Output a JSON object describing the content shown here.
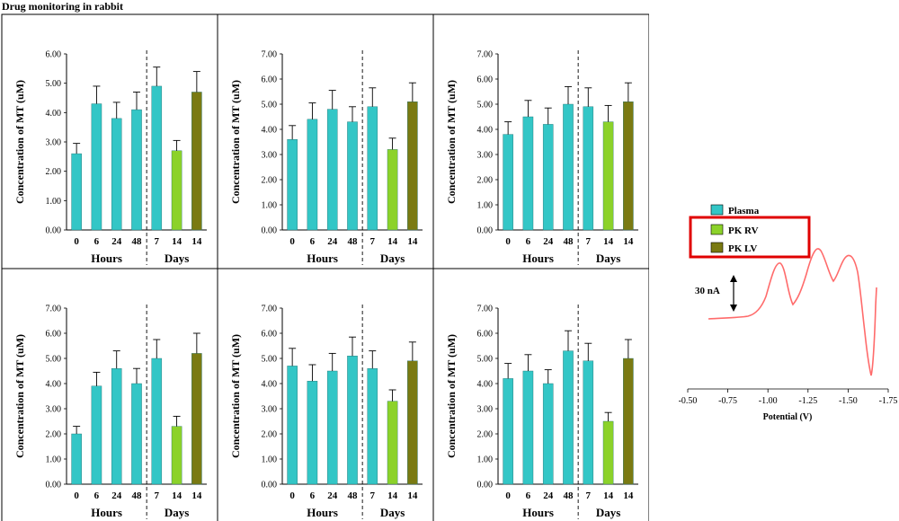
{
  "title": "Drug monitoring in rabbit",
  "colors": {
    "plasma": "#33c6c6",
    "pk_rv": "#8cd22a",
    "pk_lv": "#7a7a12",
    "highlight": "#e00000",
    "trace": "#ff6b6b",
    "axis": "#000000"
  },
  "legend": {
    "items": [
      {
        "key": "plasma",
        "label": "Plasma"
      },
      {
        "key": "pk_rv",
        "label": "PK RV"
      },
      {
        "key": "pk_lv",
        "label": "PK LV"
      }
    ]
  },
  "voltammogram": {
    "scale_label": "30 nA",
    "xlabel": "Potential (V)",
    "x_ticks": [
      "-0.50",
      "-0.75",
      "-1.00",
      "-1.25",
      "-1.50",
      "-1.75"
    ]
  },
  "chart_data": [
    {
      "type": "bar",
      "ylabel": "Concentration of MT (uM)",
      "ylim": [
        0,
        6
      ],
      "y_ticks": [
        "0.00",
        "1.00",
        "2.00",
        "3.00",
        "4.00",
        "5.00",
        "6.00"
      ],
      "categories": [
        "0",
        "6",
        "24",
        "48",
        "7",
        "14",
        "14"
      ],
      "groups": [
        "Hours",
        "Days"
      ],
      "series_keys": [
        "plasma",
        "plasma",
        "plasma",
        "plasma",
        "plasma",
        "pk_rv",
        "pk_lv"
      ],
      "values": [
        2.6,
        4.3,
        3.8,
        4.1,
        4.9,
        2.7,
        4.7
      ],
      "errors": [
        0.35,
        0.6,
        0.55,
        0.6,
        0.65,
        0.35,
        0.7
      ]
    },
    {
      "type": "bar",
      "ylabel": "Concentration of MT (uM)",
      "ylim": [
        0,
        7
      ],
      "y_ticks": [
        "0.00",
        "1.00",
        "2.00",
        "3.00",
        "4.00",
        "5.00",
        "6.00",
        "7.00"
      ],
      "categories": [
        "0",
        "6",
        "24",
        "48",
        "7",
        "14",
        "14"
      ],
      "groups": [
        "Hours",
        "Days"
      ],
      "series_keys": [
        "plasma",
        "plasma",
        "plasma",
        "plasma",
        "plasma",
        "pk_rv",
        "pk_lv"
      ],
      "values": [
        3.6,
        4.4,
        4.8,
        4.3,
        4.9,
        3.2,
        5.1
      ],
      "errors": [
        0.55,
        0.65,
        0.75,
        0.6,
        0.75,
        0.45,
        0.75
      ]
    },
    {
      "type": "bar",
      "ylabel": "Concentration of MT (uM)",
      "ylim": [
        0,
        7
      ],
      "y_ticks": [
        "0.00",
        "1.00",
        "2.00",
        "3.00",
        "4.00",
        "5.00",
        "6.00",
        "7.00"
      ],
      "categories": [
        "0",
        "6",
        "24",
        "48",
        "7",
        "14",
        "14"
      ],
      "groups": [
        "Hours",
        "Days"
      ],
      "series_keys": [
        "plasma",
        "plasma",
        "plasma",
        "plasma",
        "plasma",
        "pk_rv",
        "pk_lv"
      ],
      "values": [
        3.8,
        4.5,
        4.2,
        5.0,
        4.9,
        4.3,
        5.1
      ],
      "errors": [
        0.5,
        0.65,
        0.65,
        0.7,
        0.75,
        0.65,
        0.75
      ]
    },
    {
      "type": "bar",
      "ylabel": "Concentration of MT (uM)",
      "ylim": [
        0,
        7
      ],
      "y_ticks": [
        "0.00",
        "1.00",
        "2.00",
        "3.00",
        "4.00",
        "5.00",
        "6.00",
        "7.00"
      ],
      "categories": [
        "0",
        "6",
        "24",
        "48",
        "7",
        "14",
        "14"
      ],
      "groups": [
        "Hours",
        "Days"
      ],
      "series_keys": [
        "plasma",
        "plasma",
        "plasma",
        "plasma",
        "plasma",
        "pk_rv",
        "pk_lv"
      ],
      "values": [
        2.0,
        3.9,
        4.6,
        4.0,
        5.0,
        2.3,
        5.2
      ],
      "errors": [
        0.3,
        0.55,
        0.7,
        0.6,
        0.75,
        0.4,
        0.8
      ]
    },
    {
      "type": "bar",
      "ylabel": "Concentration of MT (uM)",
      "ylim": [
        0,
        7
      ],
      "y_ticks": [
        "0.00",
        "1.00",
        "2.00",
        "3.00",
        "4.00",
        "5.00",
        "6.00",
        "7.00"
      ],
      "categories": [
        "0",
        "6",
        "24",
        "48",
        "7",
        "14",
        "14"
      ],
      "groups": [
        "Hours",
        "Days"
      ],
      "series_keys": [
        "plasma",
        "plasma",
        "plasma",
        "plasma",
        "plasma",
        "pk_rv",
        "pk_lv"
      ],
      "values": [
        4.7,
        4.1,
        4.5,
        5.1,
        4.6,
        3.3,
        4.9
      ],
      "errors": [
        0.7,
        0.65,
        0.7,
        0.75,
        0.7,
        0.45,
        0.75
      ]
    },
    {
      "type": "bar",
      "ylabel": "Concentration of MT (uM)",
      "ylim": [
        0,
        7
      ],
      "y_ticks": [
        "0.00",
        "1.00",
        "2.00",
        "3.00",
        "4.00",
        "5.00",
        "6.00",
        "7.00"
      ],
      "categories": [
        "0",
        "6",
        "24",
        "48",
        "7",
        "14",
        "14"
      ],
      "groups": [
        "Hours",
        "Days"
      ],
      "series_keys": [
        "plasma",
        "plasma",
        "plasma",
        "plasma",
        "plasma",
        "pk_rv",
        "pk_lv"
      ],
      "values": [
        4.2,
        4.5,
        4.0,
        5.3,
        4.9,
        2.5,
        5.0
      ],
      "errors": [
        0.6,
        0.65,
        0.55,
        0.8,
        0.7,
        0.35,
        0.75
      ]
    }
  ]
}
